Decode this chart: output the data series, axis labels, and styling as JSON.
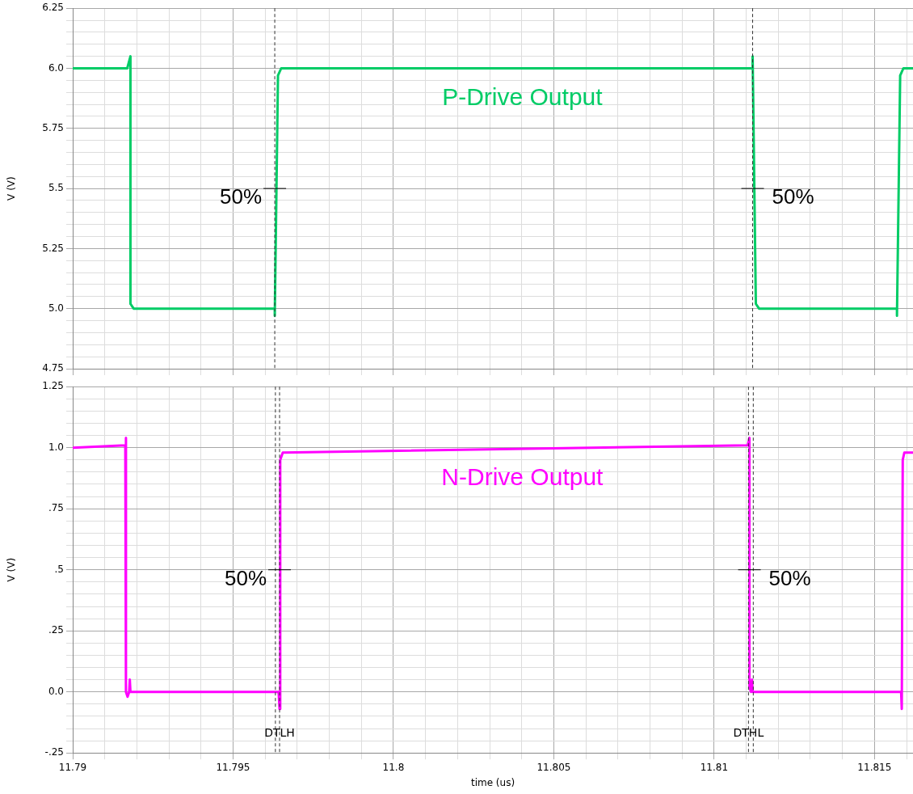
{
  "chart_data": [
    {
      "type": "line",
      "ylabel": "V (V)",
      "tick_labels": "y",
      "grid": true,
      "marker": "none",
      "xlim": [
        11.79,
        11.8162
      ],
      "xticks": [
        11.79,
        {
          "value": 11.791,
          "label": null
        },
        {
          "value": 11.792,
          "label": null
        },
        {
          "value": 11.793,
          "label": null
        },
        {
          "value": 11.794,
          "label": null
        },
        11.795,
        {
          "value": 11.796,
          "label": null
        },
        {
          "value": 11.797,
          "label": null
        },
        {
          "value": 11.798,
          "label": null
        },
        {
          "value": 11.799,
          "label": null
        },
        11.8,
        {
          "value": 11.801,
          "label": null
        },
        {
          "value": 11.802,
          "label": null
        },
        {
          "value": 11.803,
          "label": null
        },
        {
          "value": 11.804,
          "label": null
        },
        11.805,
        {
          "value": 11.806,
          "label": null
        },
        {
          "value": 11.807,
          "label": null
        },
        {
          "value": 11.808,
          "label": null
        },
        {
          "value": 11.809,
          "label": null
        },
        11.81,
        {
          "value": 11.811,
          "label": null
        },
        {
          "value": 11.812,
          "label": null
        },
        {
          "value": 11.813,
          "label": null
        },
        {
          "value": 11.814,
          "label": null
        },
        11.815,
        {
          "value": 11.816,
          "label": null
        }
      ],
      "ylim": [
        4.75,
        6.25
      ],
      "yticks": [
        4.75,
        {
          "value": 4.8,
          "label": null
        },
        {
          "value": 4.85,
          "label": null
        },
        {
          "value": 4.9,
          "label": null
        },
        {
          "value": 4.95,
          "label": null
        },
        {
          "value": 5,
          "label": "5.0"
        },
        {
          "value": 5.05,
          "label": null
        },
        {
          "value": 5.1,
          "label": null
        },
        {
          "value": 5.15,
          "label": null
        },
        {
          "value": 5.2,
          "label": null
        },
        5.25,
        {
          "value": 5.3,
          "label": null
        },
        {
          "value": 5.35,
          "label": null
        },
        {
          "value": 5.4,
          "label": null
        },
        {
          "value": 5.45,
          "label": null
        },
        5.5,
        {
          "value": 5.55,
          "label": null
        },
        {
          "value": 5.6,
          "label": null
        },
        {
          "value": 5.65,
          "label": null
        },
        {
          "value": 5.7,
          "label": null
        },
        5.75,
        {
          "value": 5.8,
          "label": null
        },
        {
          "value": 5.85,
          "label": null
        },
        {
          "value": 5.9,
          "label": null
        },
        {
          "value": 5.95,
          "label": null
        },
        {
          "value": 6,
          "label": "6.0"
        },
        {
          "value": 6.05,
          "label": null
        },
        {
          "value": 6.1,
          "label": null
        },
        {
          "value": 6.15,
          "label": null
        },
        {
          "value": 6.2,
          "label": null
        },
        6.25
      ],
      "series": [
        {
          "name": "P-Drive Output",
          "color": "#00cc66",
          "x": [
            11.79,
            11.7917,
            11.7918,
            11.7918,
            11.7919,
            11.7963,
            11.7963,
            11.7964,
            11.7965,
            11.8112,
            11.8112,
            11.8113,
            11.8114,
            11.8157,
            11.8157,
            11.8158,
            11.8159,
            11.8162
          ],
          "values": [
            6.0,
            6.0,
            6.05,
            5.02,
            5.0,
            5.0,
            4.97,
            5.97,
            6.0,
            6.0,
            6.05,
            5.02,
            5.0,
            5.0,
            4.97,
            5.97,
            6.0,
            6.0
          ]
        }
      ],
      "annotations": [
        {
          "text": "50%",
          "x": 11.7963,
          "y": 5.5
        },
        {
          "text": "50%",
          "x": 11.8112,
          "y": 5.5
        }
      ],
      "ref_lines": [
        {
          "axis": "x",
          "value": 11.7963,
          "line_style": "dashed",
          "color": "#333333"
        },
        {
          "axis": "x",
          "value": 11.8112,
          "line_style": "dashed",
          "color": "#333333"
        }
      ]
    },
    {
      "type": "line",
      "ylabel": "V (V)",
      "xlabel": "time (us)",
      "grid": true,
      "marker": "none",
      "xlim": [
        11.79,
        11.8162
      ],
      "xticks": [
        11.79,
        {
          "value": 11.791,
          "label": null
        },
        {
          "value": 11.792,
          "label": null
        },
        {
          "value": 11.793,
          "label": null
        },
        {
          "value": 11.794,
          "label": null
        },
        11.795,
        {
          "value": 11.796,
          "label": null
        },
        {
          "value": 11.797,
          "label": null
        },
        {
          "value": 11.798,
          "label": null
        },
        {
          "value": 11.799,
          "label": null
        },
        11.8,
        {
          "value": 11.801,
          "label": null
        },
        {
          "value": 11.802,
          "label": null
        },
        {
          "value": 11.803,
          "label": null
        },
        {
          "value": 11.804,
          "label": null
        },
        11.805,
        {
          "value": 11.806,
          "label": null
        },
        {
          "value": 11.807,
          "label": null
        },
        {
          "value": 11.808,
          "label": null
        },
        {
          "value": 11.809,
          "label": null
        },
        11.81,
        {
          "value": 11.811,
          "label": null
        },
        {
          "value": 11.812,
          "label": null
        },
        {
          "value": 11.813,
          "label": null
        },
        {
          "value": 11.814,
          "label": null
        },
        11.815,
        {
          "value": 11.816,
          "label": null
        }
      ],
      "ylim": [
        -0.25,
        1.25
      ],
      "yticks": [
        {
          "value": -0.25,
          "label": "-.25"
        },
        {
          "value": -0.2,
          "label": null
        },
        {
          "value": -0.15,
          "label": null
        },
        {
          "value": -0.1,
          "label": null
        },
        {
          "value": -0.05,
          "label": null
        },
        {
          "value": 0,
          "label": "0.0"
        },
        {
          "value": 0.05,
          "label": null
        },
        {
          "value": 0.1,
          "label": null
        },
        {
          "value": 0.15,
          "label": null
        },
        {
          "value": 0.2,
          "label": null
        },
        {
          "value": 0.25,
          "label": ".25"
        },
        {
          "value": 0.3,
          "label": null
        },
        {
          "value": 0.35,
          "label": null
        },
        {
          "value": 0.4,
          "label": null
        },
        {
          "value": 0.45,
          "label": null
        },
        {
          "value": 0.5,
          "label": ".5"
        },
        {
          "value": 0.55,
          "label": null
        },
        {
          "value": 0.6,
          "label": null
        },
        {
          "value": 0.65,
          "label": null
        },
        {
          "value": 0.7,
          "label": null
        },
        {
          "value": 0.75,
          "label": ".75"
        },
        {
          "value": 0.8,
          "label": null
        },
        {
          "value": 0.85,
          "label": null
        },
        {
          "value": 0.9,
          "label": null
        },
        {
          "value": 0.95,
          "label": null
        },
        {
          "value": 1,
          "label": "1.0"
        },
        {
          "value": 1.05,
          "label": null
        },
        {
          "value": 1.1,
          "label": null
        },
        {
          "value": 1.15,
          "label": null
        },
        {
          "value": 1.2,
          "label": null
        },
        1.25
      ],
      "series": [
        {
          "name": "N-Drive Output",
          "color": "#ff00ff",
          "x": [
            11.79,
            11.79164,
            11.79166,
            11.79166,
            11.79171,
            11.79176,
            11.79178,
            11.7918,
            11.79184,
            11.79642,
            11.79645,
            11.79647,
            11.79655,
            11.81105,
            11.8111,
            11.8111,
            11.81115,
            11.81118,
            11.8112,
            11.81122,
            11.81583,
            11.81585,
            11.81588,
            11.81593,
            11.8162
          ],
          "values": [
            1.0,
            1.01,
            1.04,
            0.0,
            -0.02,
            0.0,
            0.05,
            0.0,
            0.0,
            0.0,
            -0.07,
            0.95,
            0.98,
            1.01,
            1.04,
            0.02,
            0.0,
            0.05,
            0.0,
            0.0,
            0.0,
            -0.07,
            0.95,
            0.98,
            0.98
          ]
        }
      ],
      "annotations": [
        {
          "text": "50%",
          "x": 11.79645,
          "y": 0.5
        },
        {
          "text": "50%",
          "x": 11.8111,
          "y": 0.5
        }
      ],
      "ref_lines": [
        {
          "axis": "x",
          "value": 11.79632,
          "line_style": "dashed",
          "color": "#333333"
        },
        {
          "axis": "x",
          "value": 11.79645,
          "label": "DTLH",
          "line_style": "dashed",
          "color": "#333333"
        },
        {
          "axis": "x",
          "value": 11.81107,
          "label": "DTHL",
          "line_style": "dashed",
          "color": "#333333"
        },
        {
          "axis": "x",
          "value": 11.81122,
          "line_style": "dashed",
          "color": "#333333"
        }
      ]
    }
  ]
}
